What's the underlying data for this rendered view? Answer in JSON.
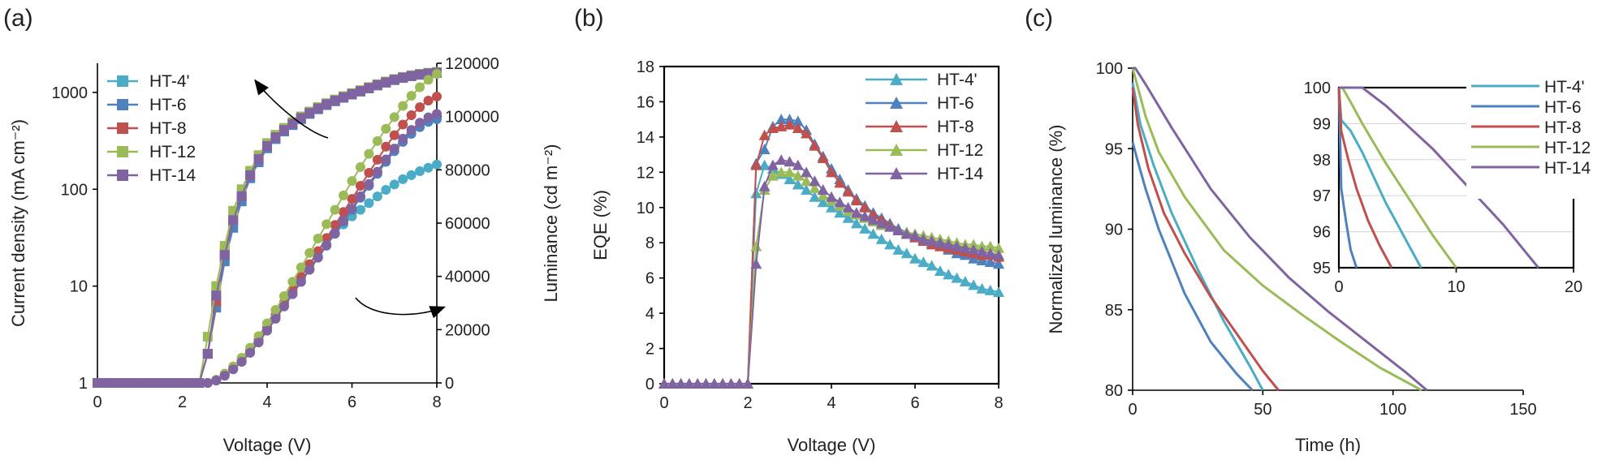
{
  "colors": {
    "HT-4'": "#4bacc6",
    "HT-6": "#4f81bd",
    "HT-8": "#c0504d",
    "HT-12": "#9bbb59",
    "HT-14": "#8064a2"
  },
  "chart_data": [
    {
      "panel": "(a)",
      "type": "scatter",
      "marker": "square+circle",
      "xlabel": "Voltage (V)",
      "ylabel": "Current density (mA cm⁻²)",
      "y2label": "Luminance (cd m⁻²)",
      "xlim": [
        0,
        8
      ],
      "ylim": [
        1,
        2000
      ],
      "yscale": "log",
      "y2lim": [
        0,
        120000
      ],
      "xticks": [
        "0",
        "2",
        "4",
        "6",
        "8"
      ],
      "yticks": [
        "1",
        "10",
        "100",
        "1000"
      ],
      "y2ticks": [
        "0",
        "20000",
        "40000",
        "60000",
        "80000",
        "100000",
        "120000"
      ],
      "legend": "top-left",
      "grid": false,
      "x": [
        0,
        0.2,
        0.4,
        0.6,
        0.8,
        1.0,
        1.2,
        1.4,
        1.6,
        1.8,
        2.0,
        2.2,
        2.4,
        2.6,
        2.8,
        3.0,
        3.2,
        3.4,
        3.6,
        3.8,
        4.0,
        4.2,
        4.4,
        4.6,
        4.8,
        5.0,
        5.2,
        5.4,
        5.6,
        5.8,
        6.0,
        6.2,
        6.4,
        6.6,
        6.8,
        7.0,
        7.2,
        7.4,
        7.6,
        7.8,
        8.0
      ],
      "series": [
        {
          "name": "HT-4'",
          "axis": "left",
          "values": [
            1,
            1,
            1,
            1,
            1,
            1,
            1,
            1,
            1,
            1,
            1,
            1,
            1,
            2,
            8,
            20,
            45,
            80,
            135,
            200,
            275,
            340,
            405,
            470,
            540,
            610,
            680,
            750,
            820,
            890,
            960,
            1030,
            1110,
            1190,
            1270,
            1350,
            1420,
            1480,
            1530,
            1570,
            1600
          ]
        },
        {
          "name": "HT-6",
          "axis": "left",
          "values": [
            1,
            1,
            1,
            1,
            1,
            1,
            1,
            1,
            1,
            1,
            1,
            1,
            1,
            2,
            6,
            18,
            40,
            75,
            130,
            190,
            265,
            330,
            395,
            460,
            530,
            600,
            670,
            740,
            810,
            880,
            950,
            1020,
            1100,
            1180,
            1260,
            1340,
            1410,
            1470,
            1520,
            1560,
            1590
          ]
        },
        {
          "name": "HT-8",
          "axis": "left",
          "values": [
            1,
            1,
            1,
            1,
            1,
            1,
            1,
            1,
            1,
            1,
            1,
            1,
            1,
            2,
            7,
            22,
            50,
            85,
            140,
            205,
            280,
            345,
            410,
            475,
            545,
            615,
            685,
            755,
            825,
            895,
            965,
            1035,
            1115,
            1195,
            1275,
            1355,
            1425,
            1485,
            1535,
            1575,
            1605
          ]
        },
        {
          "name": "HT-12",
          "axis": "left",
          "values": [
            1,
            1,
            1,
            1,
            1,
            1,
            1,
            1,
            1,
            1,
            1,
            1,
            1,
            3,
            10,
            26,
            60,
            100,
            155,
            225,
            300,
            365,
            430,
            495,
            565,
            635,
            705,
            775,
            845,
            915,
            985,
            1055,
            1135,
            1215,
            1295,
            1375,
            1445,
            1505,
            1555,
            1595,
            1625
          ]
        },
        {
          "name": "HT-14",
          "axis": "left",
          "values": [
            1,
            1,
            1,
            1,
            1,
            1,
            1,
            1,
            1,
            1,
            1,
            1,
            1,
            2,
            8,
            21,
            48,
            85,
            140,
            205,
            280,
            345,
            410,
            475,
            545,
            615,
            685,
            755,
            825,
            895,
            965,
            1035,
            1115,
            1195,
            1275,
            1355,
            1425,
            1485,
            1535,
            1575,
            1605
          ]
        },
        {
          "name": "HT-4'",
          "axis": "right",
          "values": [
            0,
            0,
            0,
            0,
            0,
            0,
            0,
            0,
            0,
            0,
            0,
            0,
            0,
            0,
            1000,
            3000,
            5500,
            8500,
            12000,
            16000,
            20500,
            25000,
            29500,
            34000,
            38500,
            43000,
            47500,
            52000,
            56000,
            59500,
            62500,
            65000,
            67500,
            70000,
            72500,
            74500,
            76500,
            78000,
            79500,
            80800,
            82000
          ]
        },
        {
          "name": "HT-6",
          "axis": "right",
          "values": [
            0,
            0,
            0,
            0,
            0,
            0,
            0,
            0,
            0,
            0,
            0,
            0,
            0,
            0,
            900,
            2800,
            5200,
            8000,
            11500,
            15500,
            20000,
            24500,
            29000,
            33500,
            38000,
            42500,
            47000,
            51500,
            56000,
            60500,
            65000,
            69500,
            74000,
            78500,
            83000,
            87000,
            90500,
            93500,
            96000,
            98000,
            99000
          ]
        },
        {
          "name": "HT-8",
          "axis": "right",
          "values": [
            0,
            0,
            0,
            0,
            0,
            0,
            0,
            0,
            0,
            0,
            0,
            0,
            0,
            0,
            1000,
            3000,
            5600,
            8600,
            12200,
            16300,
            20800,
            25500,
            30200,
            35000,
            39800,
            44600,
            49500,
            54400,
            59300,
            64200,
            69100,
            74000,
            78900,
            83800,
            88700,
            93000,
            97000,
            100500,
            103500,
            106000,
            107500
          ]
        },
        {
          "name": "HT-12",
          "axis": "right",
          "values": [
            0,
            0,
            0,
            0,
            0,
            0,
            0,
            0,
            0,
            0,
            0,
            0,
            0,
            0,
            1200,
            3500,
            6200,
            9400,
            13200,
            17600,
            22400,
            27400,
            32600,
            38000,
            43400,
            48800,
            54200,
            59600,
            65000,
            70400,
            75800,
            81000,
            86000,
            90800,
            95400,
            99800,
            104000,
            107800,
            111000,
            113800,
            116000
          ]
        },
        {
          "name": "HT-14",
          "axis": "right",
          "values": [
            0,
            0,
            0,
            0,
            0,
            0,
            0,
            0,
            0,
            0,
            0,
            0,
            0,
            0,
            900,
            2700,
            5100,
            7900,
            11300,
            15200,
            19600,
            24100,
            28700,
            33300,
            37900,
            42500,
            47100,
            51700,
            56300,
            60900,
            65500,
            70100,
            74700,
            79300,
            83900,
            88000,
            91700,
            95000,
            97700,
            99700,
            101000
          ]
        }
      ]
    },
    {
      "panel": "(b)",
      "type": "line",
      "marker": "triangle",
      "xlabel": "Voltage (V)",
      "ylabel": "EQE (%)",
      "xlim": [
        0,
        8
      ],
      "ylim": [
        0,
        18
      ],
      "xticks": [
        "0",
        "2",
        "4",
        "6",
        "8"
      ],
      "yticks": [
        "0",
        "2",
        "4",
        "6",
        "8",
        "10",
        "12",
        "14",
        "16",
        "18"
      ],
      "legend": "top-right",
      "grid": false,
      "x": [
        0,
        0.2,
        0.4,
        0.6,
        0.8,
        1.0,
        1.2,
        1.4,
        1.6,
        1.8,
        2.0,
        2.2,
        2.4,
        2.6,
        2.8,
        3.0,
        3.2,
        3.4,
        3.6,
        3.8,
        4.0,
        4.2,
        4.4,
        4.6,
        4.8,
        5.0,
        5.2,
        5.4,
        5.6,
        5.8,
        6.0,
        6.2,
        6.4,
        6.6,
        6.8,
        7.0,
        7.2,
        7.4,
        7.6,
        7.8,
        8.0
      ],
      "series": [
        {
          "name": "HT-4'",
          "values": [
            0,
            0,
            0,
            0,
            0,
            0,
            0,
            0,
            0,
            0,
            0,
            10.8,
            12.4,
            12.2,
            11.9,
            11.6,
            11.3,
            11.0,
            10.6,
            10.3,
            10.0,
            9.7,
            9.4,
            9.1,
            8.8,
            8.5,
            8.2,
            7.9,
            7.6,
            7.4,
            7.1,
            6.9,
            6.7,
            6.4,
            6.2,
            6.0,
            5.8,
            5.6,
            5.4,
            5.3,
            5.2
          ]
        },
        {
          "name": "HT-6",
          "values": [
            0,
            0,
            0,
            0,
            0,
            0,
            0,
            0,
            0,
            0,
            0,
            12.5,
            13.3,
            14.6,
            15.0,
            15.0,
            14.9,
            14.4,
            13.6,
            12.9,
            12.2,
            11.6,
            11.0,
            10.5,
            10.1,
            9.7,
            9.4,
            9.1,
            8.8,
            8.6,
            8.4,
            8.2,
            8.0,
            7.8,
            7.6,
            7.4,
            7.3,
            7.1,
            7.0,
            6.9,
            6.8
          ]
        },
        {
          "name": "HT-8",
          "values": [
            0,
            0,
            0,
            0,
            0,
            0,
            0,
            0,
            0,
            0,
            0,
            12.4,
            14.1,
            14.5,
            14.6,
            14.7,
            14.5,
            14.2,
            13.5,
            12.8,
            12.0,
            11.4,
            10.9,
            10.4,
            10.0,
            9.6,
            9.3,
            9.0,
            8.7,
            8.5,
            8.3,
            8.1,
            7.9,
            7.8,
            7.7,
            7.6,
            7.5,
            7.4,
            7.3,
            7.3,
            7.2
          ]
        },
        {
          "name": "HT-12",
          "values": [
            0,
            0,
            0,
            0,
            0,
            0,
            0,
            0,
            0,
            0,
            0,
            7.8,
            11.0,
            11.8,
            12.0,
            12.0,
            11.8,
            11.5,
            11.1,
            10.7,
            10.4,
            10.1,
            9.8,
            9.6,
            9.4,
            9.2,
            9.0,
            8.9,
            8.7,
            8.6,
            8.5,
            8.4,
            8.3,
            8.2,
            8.1,
            8.0,
            7.9,
            7.9,
            7.8,
            7.8,
            7.7
          ]
        },
        {
          "name": "HT-14",
          "values": [
            0,
            0,
            0,
            0,
            0,
            0,
            0,
            0,
            0,
            0,
            0,
            6.8,
            11.2,
            12.4,
            12.7,
            12.6,
            12.4,
            12.0,
            11.5,
            11.0,
            10.6,
            10.3,
            10.0,
            9.7,
            9.5,
            9.3,
            9.1,
            8.9,
            8.7,
            8.5,
            8.4,
            8.2,
            8.1,
            8.0,
            7.9,
            7.8,
            7.7,
            7.6,
            7.5,
            7.4,
            7.3
          ]
        }
      ]
    },
    {
      "panel": "(c)",
      "type": "line",
      "xlabel": "Time (h)",
      "ylabel": "Normalized luminance (%)",
      "xlim": [
        0,
        150
      ],
      "ylim": [
        80,
        100
      ],
      "xticks": [
        "0",
        "50",
        "100",
        "150"
      ],
      "yticks": [
        "80",
        "85",
        "90",
        "95",
        "100"
      ],
      "legend": "top-right",
      "grid": false,
      "series": [
        {
          "name": "HT-4'",
          "x": [
            0,
            3,
            8,
            15,
            25,
            35,
            45,
            50
          ],
          "values": [
            99.1,
            96.5,
            94.0,
            91.0,
            87.5,
            84.3,
            81.5,
            80.0
          ]
        },
        {
          "name": "HT-6",
          "x": [
            0,
            2,
            5,
            10,
            20,
            30,
            40,
            46
          ],
          "values": [
            95.4,
            94.2,
            92.5,
            90.0,
            86.0,
            83.0,
            81.0,
            80.0
          ]
        },
        {
          "name": "HT-8",
          "x": [
            0,
            2,
            6,
            12,
            20,
            30,
            40,
            50,
            56
          ],
          "values": [
            98.8,
            96.5,
            93.8,
            91.0,
            88.5,
            85.8,
            83.5,
            81.2,
            80.0
          ]
        },
        {
          "name": "HT-12",
          "x": [
            0,
            5,
            10,
            20,
            35,
            50,
            65,
            80,
            95,
            111
          ],
          "values": [
            100,
            97.0,
            94.8,
            92.0,
            88.7,
            86.5,
            84.7,
            83.0,
            81.4,
            80.0
          ]
        },
        {
          "name": "HT-14",
          "x": [
            0,
            1,
            5,
            15,
            30,
            45,
            60,
            75,
            90,
            105,
            113
          ],
          "values": [
            100,
            100,
            99.0,
            96.3,
            92.5,
            89.5,
            87.0,
            84.9,
            83.0,
            81.1,
            80.0
          ]
        }
      ],
      "inset": {
        "xlim": [
          0,
          20
        ],
        "ylim": [
          95,
          100
        ],
        "xticks": [
          "0",
          "10",
          "20"
        ],
        "yticks": [
          "95",
          "96",
          "97",
          "98",
          "99",
          "100"
        ],
        "grid": true,
        "series": [
          {
            "name": "HT-4'",
            "x": [
              0,
              0.2,
              1,
              2,
              3,
              4,
              5,
              6,
              7
            ],
            "values": [
              100,
              99.1,
              98.8,
              98.2,
              97.5,
              96.8,
              96.2,
              95.6,
              95.0
            ]
          },
          {
            "name": "HT-6",
            "x": [
              0,
              0.2,
              0.6,
              1.0,
              1.5
            ],
            "values": [
              100,
              97.2,
              96.3,
              95.5,
              95.0
            ]
          },
          {
            "name": "HT-8",
            "x": [
              0,
              0.2,
              0.8,
              1.5,
              2.5,
              3.5,
              4.5
            ],
            "values": [
              100,
              98.8,
              98.0,
              97.2,
              96.3,
              95.6,
              95.0
            ]
          },
          {
            "name": "HT-12",
            "x": [
              0,
              0.3,
              1,
              2,
              4,
              6,
              8,
              10
            ],
            "values": [
              100,
              100,
              99.6,
              99.0,
              97.9,
              96.9,
              95.9,
              95.0
            ]
          },
          {
            "name": "HT-14",
            "x": [
              0,
              1,
              2,
              4,
              6,
              8,
              10,
              12,
              14,
              16,
              17
            ],
            "values": [
              100,
              100,
              100,
              99.5,
              98.9,
              98.3,
              97.6,
              96.9,
              96.2,
              95.4,
              95.0
            ]
          }
        ]
      }
    }
  ]
}
